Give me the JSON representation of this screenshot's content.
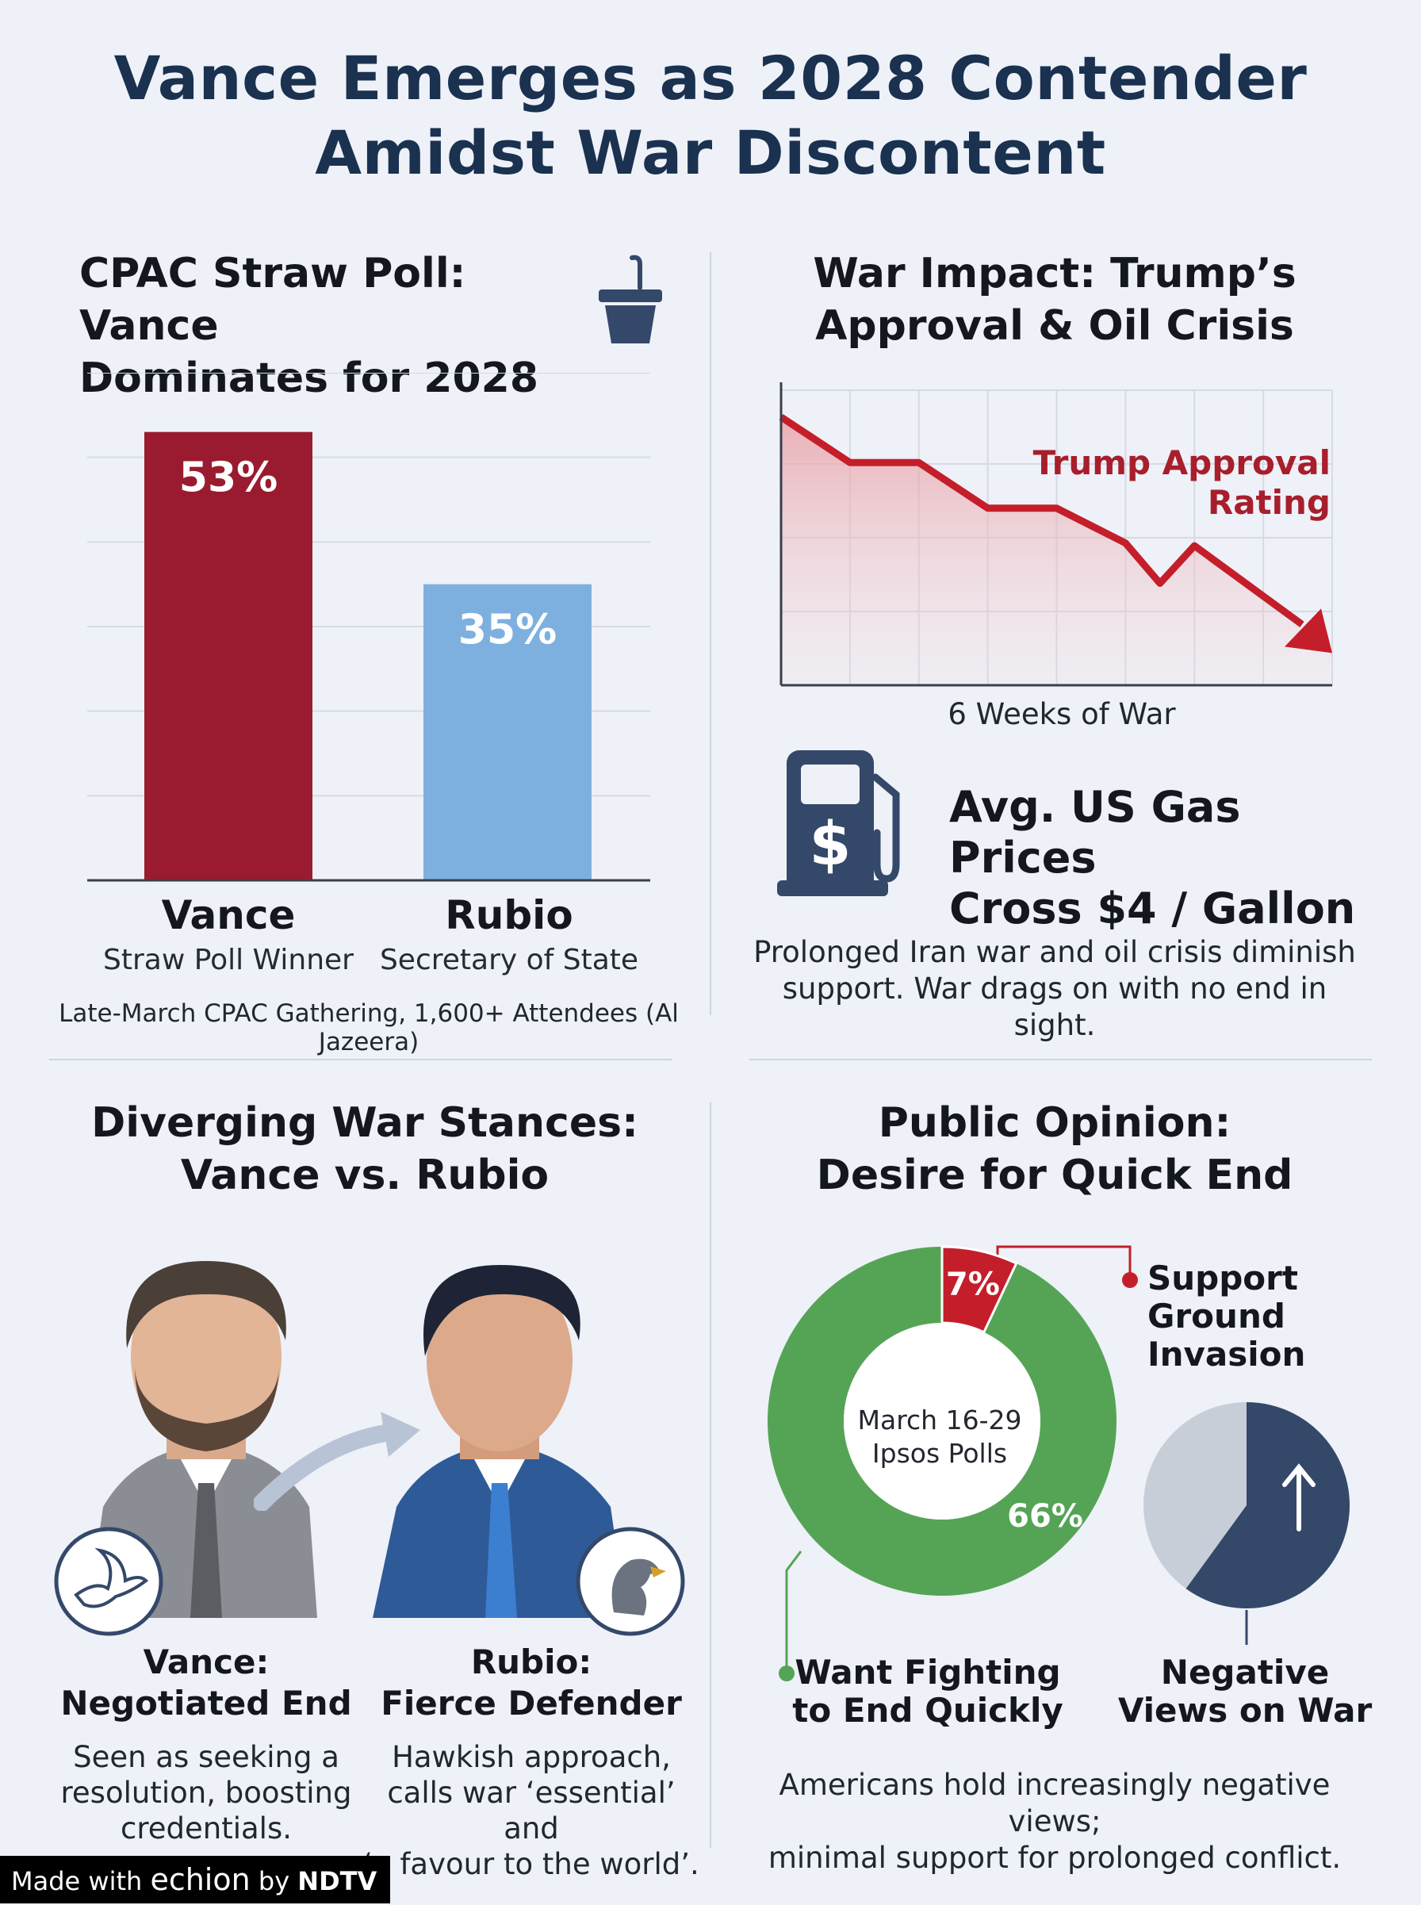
{
  "title_line1": "Vance Emerges as 2028 Contender",
  "title_line2": "Amidst War Discontent",
  "cpac": {
    "title_line1": "CPAC Straw Poll: Vance",
    "title_line2": "Dominates for 2028",
    "footnote": "Late-March CPAC Gathering, 1,600+ Attendees (Al Jazeera)",
    "candidates": [
      {
        "name": "Vance",
        "role": "Straw Poll Winner"
      },
      {
        "name": "Rubio",
        "role": "Secretary of State"
      }
    ]
  },
  "war": {
    "title_line1": "War Impact: Trump’s",
    "title_line2": "Approval & Oil Crisis",
    "gas_line1": "Avg. US Gas Prices",
    "gas_line2": "Cross $4 / Gallon",
    "note_line1": "Prolonged Iran war and oil crisis diminish",
    "note_line2": "support. War drags on with no end in sight.",
    "dollar_sign": "$"
  },
  "stances": {
    "title_line1": "Diverging War Stances:",
    "title_line2": "Vance vs. Rubio",
    "vance": {
      "heading1": "Vance:",
      "heading2": "Negotiated End",
      "desc1": "Seen as seeking a",
      "desc2": "resolution, boosting",
      "desc3": "credentials."
    },
    "rubio": {
      "heading1": "Rubio:",
      "heading2": "Fierce Defender",
      "desc1": "Hawkish approach,",
      "desc2": "calls war ‘essential’ and",
      "desc3": "‘a favour to the world’."
    }
  },
  "opinion": {
    "title_line1": "Public Opinion:",
    "title_line2": "Desire for Quick End",
    "center_line1": "March 16-29",
    "center_line2": "Ipsos Polls",
    "support_line1": "Support",
    "support_line2": "Ground",
    "support_line3": "Invasion",
    "want_line1": "Want Fighting",
    "want_line2": "to End Quickly",
    "neg_line1": "Negative",
    "neg_line2": "Views on War",
    "note_line1": "Americans hold increasingly negative views;",
    "note_line2": "minimal support for prolonged conflict."
  },
  "footer": {
    "made_with": "Made with",
    "brand": "echion",
    "by": "by",
    "network": "NDTV"
  },
  "colors": {
    "vance_red": "#9a1b2f",
    "rubio_blue": "#7eb0df",
    "line_red": "#c41e2a",
    "green": "#55a456",
    "navy": "#34486a",
    "gray": "#c8ced8"
  },
  "chart_data": [
    {
      "type": "bar",
      "title": "CPAC Straw Poll: Vance Dominates for 2028",
      "categories": [
        "Vance",
        "Rubio"
      ],
      "values": [
        53,
        35
      ],
      "value_labels": [
        "53%",
        "35%"
      ],
      "ylim": [
        0,
        60
      ],
      "grid": true,
      "xlabel": "",
      "ylabel": ""
    },
    {
      "type": "line",
      "title": "War Impact: Trump’s Approval & Oil Crisis",
      "series_label": "Trump Approval Rating",
      "xlabel": "6 Weeks of War",
      "ylabel": "",
      "x": [
        0,
        1,
        2,
        3,
        4,
        5,
        5.5,
        6,
        8
      ],
      "values": [
        100,
        83,
        83,
        66,
        66,
        53,
        38,
        52,
        12
      ],
      "ylim": [
        0,
        110
      ],
      "grid": true
    },
    {
      "type": "pie",
      "title": "Public Opinion: Desire for Quick End",
      "donut": true,
      "slices": [
        {
          "label": "Support Ground Invasion",
          "value": 7,
          "display": "7%"
        },
        {
          "label": "Want Fighting to End Quickly",
          "value": 66,
          "display": "66%"
        }
      ]
    },
    {
      "type": "pie",
      "title": "Negative Views on War",
      "slices": [
        {
          "label": "Negative Views on War",
          "value": 60
        },
        {
          "label": "Other",
          "value": 40
        }
      ]
    }
  ]
}
